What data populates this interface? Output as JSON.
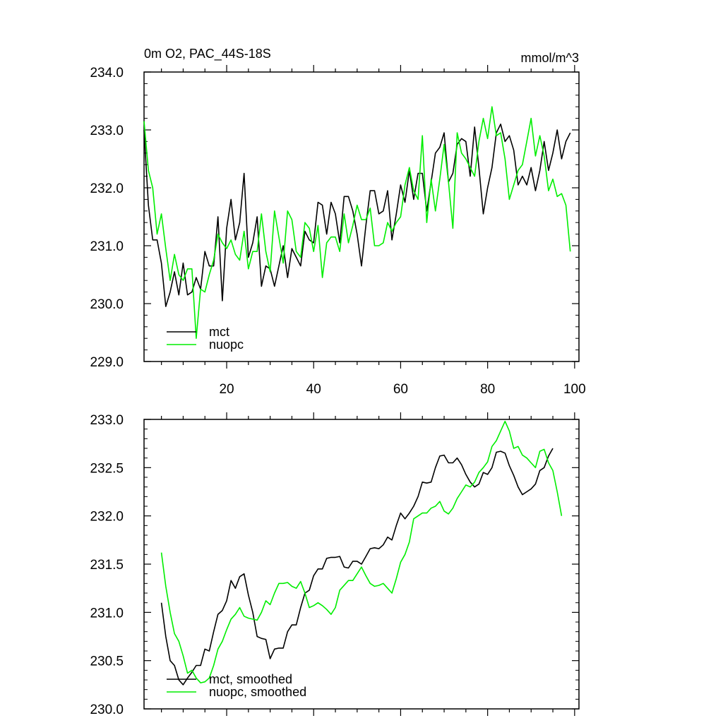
{
  "chart_data": [
    {
      "type": "line",
      "title": "0m O2, PAC_44S-18S",
      "units": "mmol/m^3",
      "xlim": [
        1,
        101
      ],
      "ylim": [
        229.0,
        234.0
      ],
      "x_ticks": [
        20,
        40,
        60,
        80,
        100
      ],
      "y_ticks": [
        "229.0",
        "230.0",
        "231.0",
        "232.0",
        "233.0",
        "234.0"
      ],
      "x_start": 1,
      "legend_position": "bottom-left",
      "series": [
        {
          "name": "mct",
          "color": "#000000",
          "values": [
            233.0,
            231.7,
            231.1,
            231.1,
            230.7,
            229.95,
            230.2,
            230.55,
            230.15,
            230.7,
            230.15,
            230.2,
            230.45,
            230.25,
            230.9,
            230.65,
            230.65,
            231.5,
            230.05,
            231.3,
            231.8,
            231.1,
            231.4,
            232.25,
            230.8,
            231.05,
            231.5,
            230.3,
            230.65,
            230.6,
            230.3,
            230.65,
            231.0,
            230.45,
            230.95,
            230.8,
            230.65,
            231.25,
            231.1,
            231.05,
            231.75,
            231.7,
            231.2,
            231.75,
            231.55,
            231.05,
            231.85,
            231.85,
            231.6,
            231.2,
            230.65,
            231.35,
            231.95,
            231.95,
            231.55,
            231.6,
            231.95,
            231.1,
            231.55,
            232.05,
            231.75,
            232.3,
            231.8,
            232.25,
            232.25,
            231.6,
            232.1,
            232.6,
            232.7,
            232.95,
            232.1,
            232.25,
            232.75,
            232.85,
            232.8,
            232.2,
            233.05,
            232.35,
            231.55,
            232.0,
            232.35,
            232.95,
            233.1,
            232.8,
            232.9,
            232.65,
            232.05,
            232.2,
            232.05,
            232.35,
            231.95,
            232.3,
            232.8,
            232.3,
            232.6,
            233.0,
            232.5,
            232.8,
            232.95
          ]
        },
        {
          "name": "nuopc",
          "color": "#00ee00",
          "values": [
            233.15,
            232.3,
            232.0,
            231.2,
            231.55,
            230.95,
            230.4,
            230.85,
            230.5,
            230.4,
            230.6,
            230.6,
            229.4,
            230.25,
            230.2,
            230.5,
            230.75,
            231.2,
            231.05,
            230.95,
            231.1,
            230.85,
            230.75,
            231.25,
            230.6,
            230.9,
            230.9,
            231.55,
            230.9,
            230.55,
            231.6,
            231.15,
            230.7,
            231.6,
            231.45,
            230.9,
            230.8,
            231.4,
            231.3,
            230.9,
            231.35,
            230.45,
            231.05,
            231.15,
            231.15,
            230.9,
            231.55,
            231.05,
            231.35,
            231.7,
            231.45,
            231.45,
            231.65,
            231.0,
            231.0,
            231.05,
            231.4,
            231.25,
            231.4,
            231.5,
            232.05,
            232.35,
            231.95,
            231.8,
            232.9,
            231.4,
            232.15,
            231.6,
            232.15,
            232.75,
            232.1,
            231.3,
            232.95,
            232.6,
            232.5,
            232.35,
            232.2,
            232.8,
            233.2,
            232.85,
            233.4,
            232.9,
            232.95,
            232.5,
            231.8,
            232.05,
            232.3,
            232.4,
            232.8,
            233.2,
            232.55,
            232.9,
            232.55,
            231.95,
            232.15,
            231.85,
            231.9,
            231.7,
            230.9
          ]
        }
      ]
    },
    {
      "type": "line",
      "xlim": [
        1,
        101
      ],
      "ylim": [
        230.0,
        233.0
      ],
      "y_ticks": [
        "230.0",
        "230.5",
        "231.0",
        "231.5",
        "232.0",
        "232.5",
        "233.0"
      ],
      "x_start": 5,
      "legend_position": "bottom-left",
      "series": [
        {
          "name": "mct, smoothed",
          "color": "#000000",
          "values": [
            231.1,
            230.75,
            230.5,
            230.45,
            230.3,
            230.25,
            230.32,
            230.38,
            230.45,
            230.45,
            230.62,
            230.6,
            230.8,
            230.98,
            231.02,
            231.12,
            231.33,
            231.25,
            231.37,
            231.4,
            231.18,
            231.0,
            230.75,
            230.73,
            230.72,
            230.52,
            230.62,
            230.63,
            230.63,
            230.8,
            230.87,
            230.87,
            231.05,
            231.2,
            231.23,
            231.38,
            231.45,
            231.45,
            231.56,
            231.57,
            231.57,
            231.58,
            231.47,
            231.46,
            231.53,
            231.53,
            231.5,
            231.58,
            231.66,
            231.67,
            231.66,
            231.7,
            231.78,
            231.75,
            231.9,
            232.03,
            231.97,
            232.03,
            232.1,
            232.2,
            232.35,
            232.34,
            232.35,
            232.5,
            232.62,
            232.63,
            232.55,
            232.55,
            232.6,
            232.53,
            232.43,
            232.35,
            232.3,
            232.33,
            232.45,
            232.43,
            232.5,
            232.66,
            232.67,
            232.65,
            232.52,
            232.42,
            232.3,
            232.22,
            232.25,
            232.28,
            232.33,
            232.47,
            232.5,
            232.62,
            232.7
          ]
        },
        {
          "name": "nuopc, smoothed",
          "color": "#00ee00",
          "values": [
            231.62,
            231.27,
            231.0,
            230.78,
            230.7,
            230.55,
            230.37,
            230.4,
            230.32,
            230.27,
            230.28,
            230.32,
            230.45,
            230.62,
            230.7,
            230.82,
            230.93,
            230.98,
            231.05,
            230.96,
            230.94,
            230.93,
            230.92,
            231.0,
            231.12,
            231.08,
            231.2,
            231.3,
            231.3,
            231.31,
            231.27,
            231.25,
            231.32,
            231.2,
            231.05,
            231.07,
            231.1,
            231.07,
            231.03,
            230.98,
            231.05,
            231.23,
            231.28,
            231.33,
            231.33,
            231.4,
            231.47,
            231.38,
            231.3,
            231.27,
            231.28,
            231.3,
            231.25,
            231.2,
            231.35,
            231.52,
            231.6,
            231.73,
            231.97,
            232.0,
            232.03,
            232.03,
            232.08,
            232.1,
            232.15,
            232.05,
            232.02,
            232.08,
            232.18,
            232.25,
            232.32,
            232.3,
            232.35,
            232.45,
            232.5,
            232.56,
            232.72,
            232.78,
            232.88,
            232.98,
            232.88,
            232.7,
            232.72,
            232.63,
            232.6,
            232.55,
            232.5,
            232.67,
            232.69,
            232.55,
            232.47,
            232.25,
            232.0
          ]
        }
      ]
    }
  ]
}
